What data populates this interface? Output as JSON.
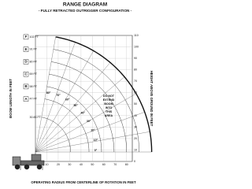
{
  "title": "RANGE DIAGRAM",
  "subtitle": "- FULLY RETRACTED OUTRIGGER CONFIGURATION -",
  "left_axis_label": "BOOM LENGTH IN FEET",
  "right_axis_label": "HEIGHT ABOVE GROUND IN FEET",
  "bottom_axis_label": "OPERATING RADIUS FROM CENTERLINE OF ROTATION IN FEET",
  "booms": [
    {
      "letter": "F",
      "length": {
        "value": 102,
        "label": "102 FT"
      }
    },
    {
      "letter": "E",
      "length": {
        "value": 91,
        "label": "91 FT"
      }
    },
    {
      "letter": "D",
      "length": {
        "value": 80,
        "label": "80 FT"
      }
    },
    {
      "letter": "C",
      "length": {
        "value": 69,
        "label": "69 FT"
      }
    },
    {
      "letter": "B",
      "length": {
        "value": 58,
        "label": "58 FT"
      }
    },
    {
      "letter": "A",
      "length": {
        "value": 47,
        "label": "47 FT"
      }
    },
    {
      "letter": null,
      "length": {
        "value": 30.83,
        "label": "30.83 FT"
      }
    }
  ],
  "angles": [
    {
      "value": 80,
      "label": "80°"
    },
    {
      "value": 70,
      "label": "70°"
    },
    {
      "value": 60,
      "label": "60°"
    },
    {
      "value": 50,
      "label": "50°"
    },
    {
      "value": 40,
      "label": "40°"
    },
    {
      "value": 30,
      "label": "30°"
    },
    {
      "value": 20,
      "label": "20°"
    },
    {
      "value": 10,
      "label": "10°"
    },
    {
      "value": 0,
      "label": "0°"
    }
  ],
  "xlim": [
    0,
    85
  ],
  "xticks": [
    0,
    10,
    20,
    30,
    40,
    50,
    60,
    70,
    80
  ],
  "ylim": [
    0,
    110
  ],
  "yticks": [
    0,
    10,
    20,
    30,
    40,
    50,
    60,
    70,
    80,
    90,
    100,
    110
  ],
  "warning": [
    "DO NOT",
    "EXTEND",
    "BOOM",
    "INTO",
    "THIS",
    "AREA"
  ]
}
